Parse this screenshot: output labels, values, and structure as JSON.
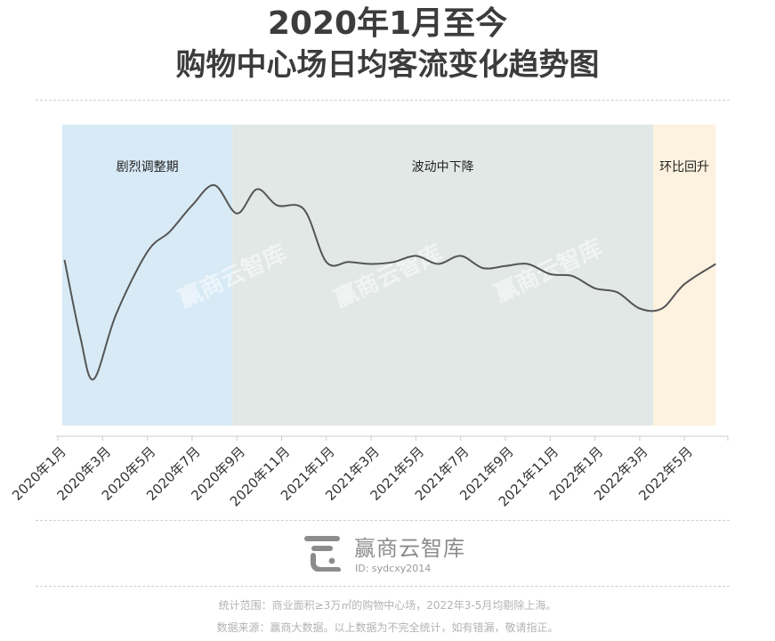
{
  "title_line1": "2020年1月至今",
  "title_line2": "购物中心场日均客流变化趋势图",
  "brand": {
    "name": "赢商云智库",
    "id": "ID: sydcxy2014",
    "watermark": "赢商云智库"
  },
  "notes": {
    "scope": "统计范围：商业面积≥3万㎡的购物中心场，2022年3-5月均剔除上海。",
    "source": "数据来源：赢商大数据。以上数据为不完全统计，如有错漏，敬请指正。"
  },
  "colors": {
    "line": "#555555",
    "phase1": "#d8eaf6",
    "phase2": "#e2e8e6",
    "phase3": "#fdf1df",
    "title": "#3c3c3c",
    "axis": "#cccccc"
  },
  "chart_data": {
    "type": "line",
    "title": "购物中心场日均客流变化趋势图",
    "y_axis_shown": false,
    "grid": false,
    "ticks": [
      "2020年1月",
      "2020年3月",
      "2020年5月",
      "2020年7月",
      "2020年9月",
      "2020年11月",
      "2021年1月",
      "2021年3月",
      "2021年5月",
      "2021年7月",
      "2021年9月",
      "2021年11月",
      "2022年1月",
      "2022年3月",
      "2022年5月"
    ],
    "phases": [
      {
        "label": "剧烈调整期",
        "start": 0.2,
        "end": 7.8
      },
      {
        "label": "波动中下降",
        "start": 7.8,
        "end": 26.6
      },
      {
        "label": "环比回升",
        "start": 26.6,
        "end": 29.4
      }
    ],
    "series": [
      {
        "values": [
          [
            0.3,
            0.63
          ],
          [
            1.0,
            0.25
          ],
          [
            1.6,
            0.04
          ],
          [
            2.6,
            0.36
          ],
          [
            4.0,
            0.67
          ],
          [
            5.0,
            0.77
          ],
          [
            6.0,
            0.9
          ],
          [
            7.0,
            1.0
          ],
          [
            8.0,
            0.86
          ],
          [
            8.9,
            0.98
          ],
          [
            9.8,
            0.9
          ],
          [
            11.0,
            0.88
          ],
          [
            12.0,
            0.62
          ],
          [
            13.0,
            0.62
          ],
          [
            14.0,
            0.61
          ],
          [
            15.0,
            0.62
          ],
          [
            16.0,
            0.65
          ],
          [
            17.0,
            0.61
          ],
          [
            18.0,
            0.65
          ],
          [
            19.0,
            0.59
          ],
          [
            20.0,
            0.6
          ],
          [
            21.0,
            0.61
          ],
          [
            22.0,
            0.56
          ],
          [
            23.0,
            0.55
          ],
          [
            24.0,
            0.49
          ],
          [
            25.0,
            0.47
          ],
          [
            26.0,
            0.39
          ],
          [
            27.0,
            0.39
          ],
          [
            28.0,
            0.51
          ],
          [
            29.4,
            0.61
          ]
        ]
      }
    ]
  }
}
